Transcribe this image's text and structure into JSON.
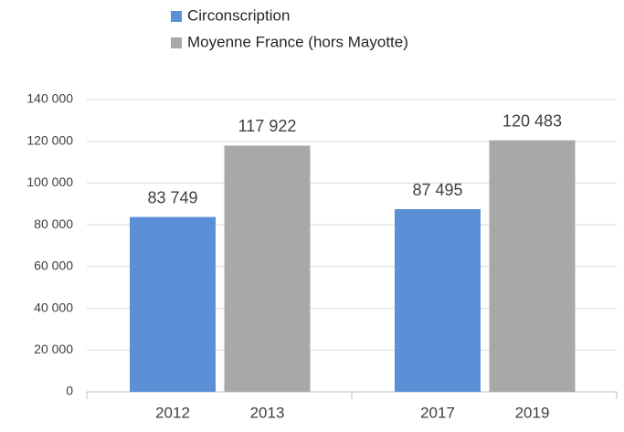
{
  "chart_data": {
    "type": "bar",
    "categories": [
      "2012",
      "2013",
      "2017",
      "2019"
    ],
    "series": [
      {
        "name": "Circonscription",
        "color": "#5b8fd6",
        "values": [
          83749,
          null,
          87495,
          null
        ],
        "value_labels": [
          "83 749",
          null,
          "87 495",
          null
        ]
      },
      {
        "name": "Moyenne France (hors Mayotte)",
        "color": "#a9a8a8",
        "values": [
          null,
          117922,
          null,
          120483
        ],
        "value_labels": [
          null,
          "117 922",
          null,
          "120 483"
        ]
      }
    ],
    "ylim": [
      0,
      140000
    ],
    "yticks": [
      0,
      {
        "value": 20000,
        "label": "20 000"
      },
      {
        "value": 40000,
        "label": "40 000"
      },
      {
        "value": 60000,
        "label": "60 000"
      },
      {
        "value": 80000,
        "label": "80 000"
      },
      {
        "value": 100000,
        "label": "100 000"
      },
      {
        "value": 120000,
        "label": "120 000"
      },
      {
        "value": 140000,
        "label": "140 000"
      }
    ],
    "grid": true
  }
}
